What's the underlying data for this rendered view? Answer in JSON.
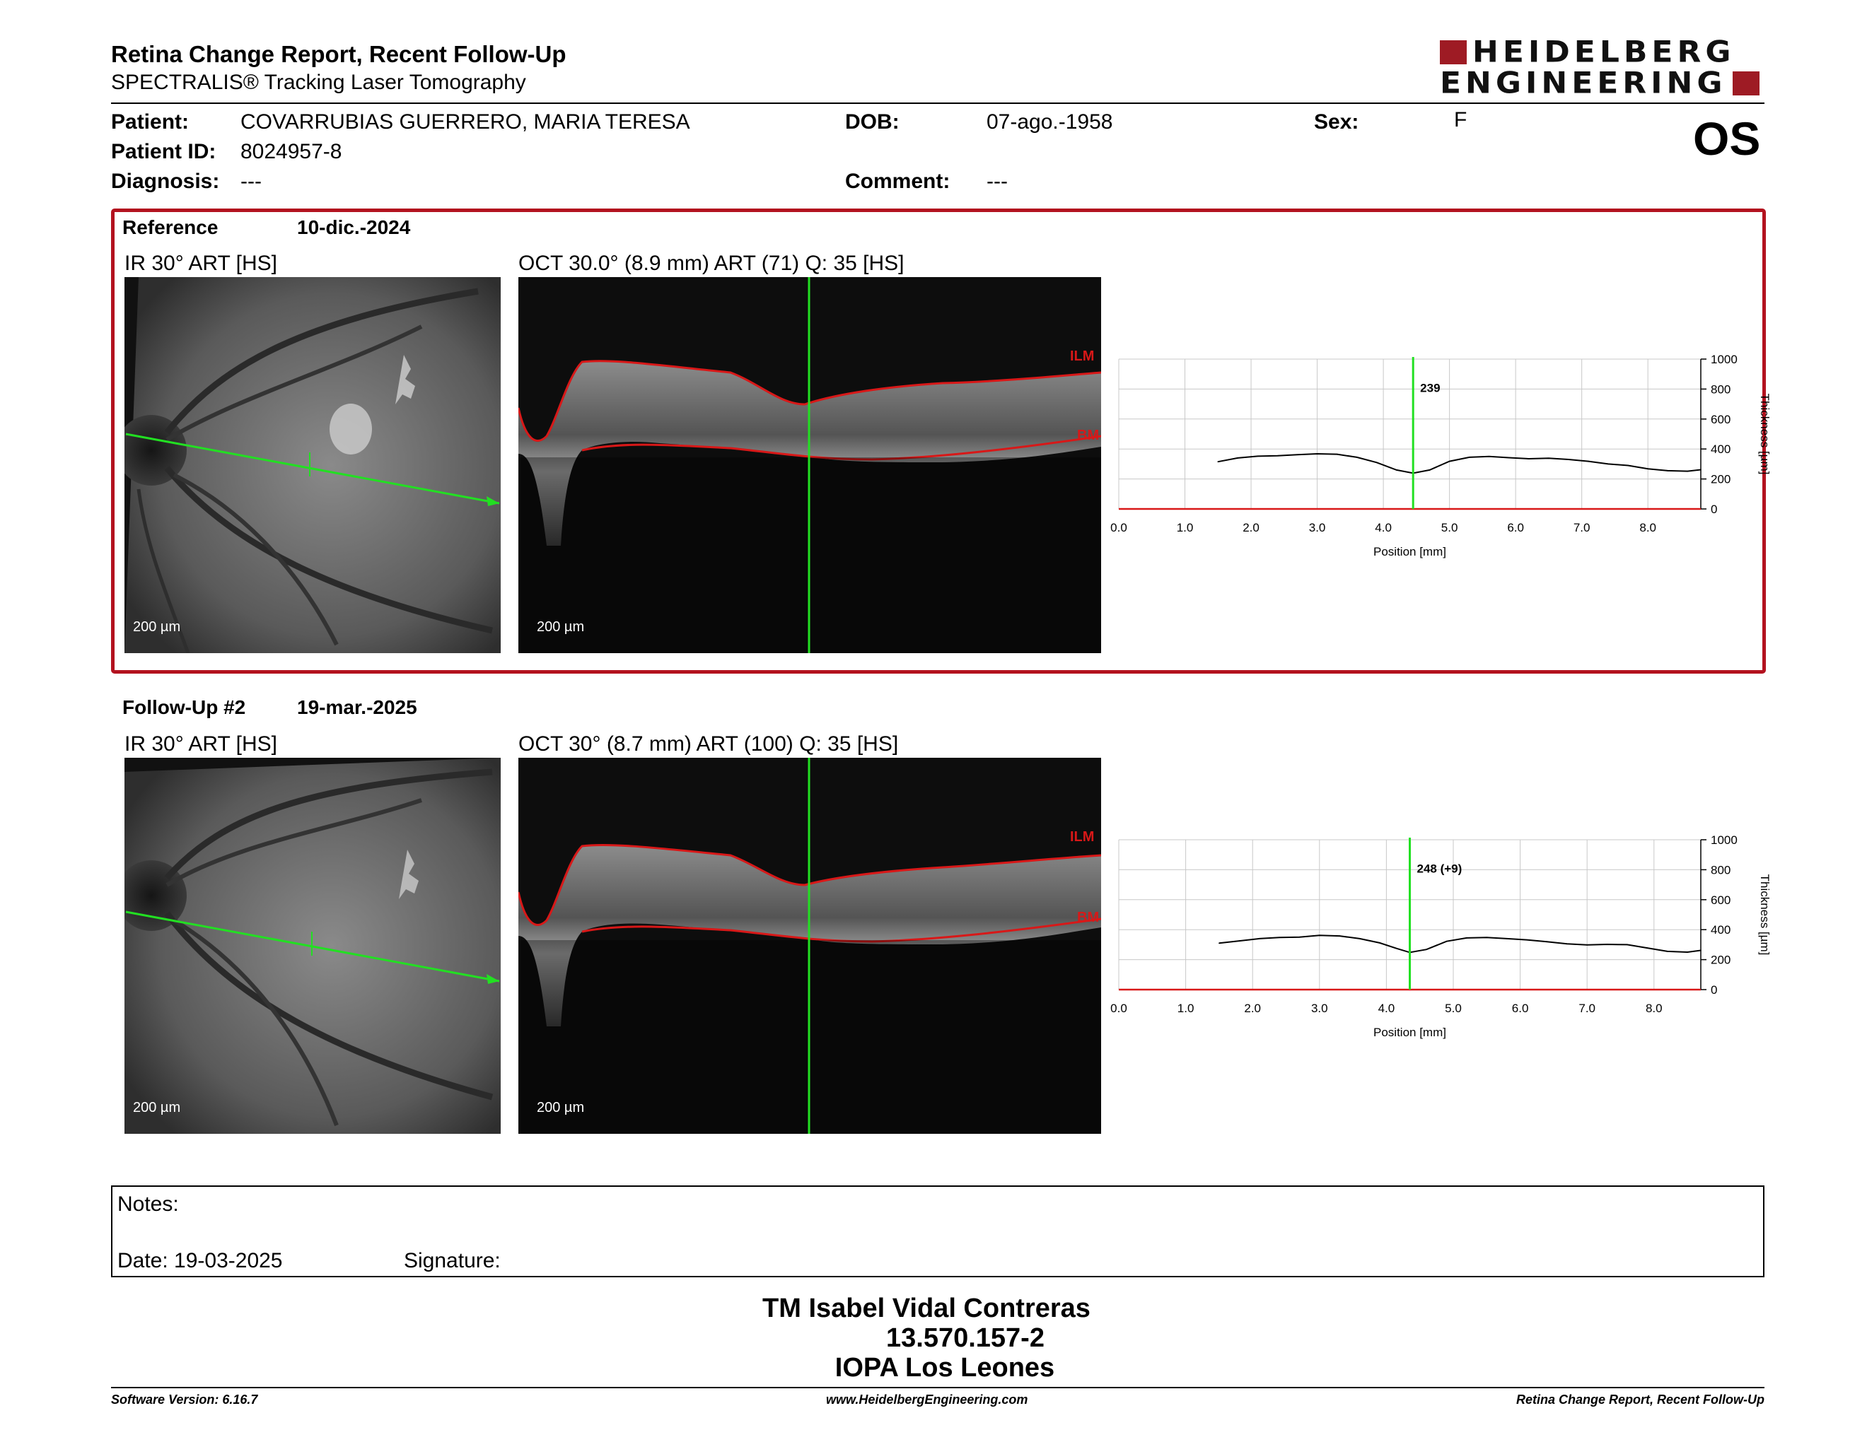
{
  "header": {
    "title": "Retina Change Report, Recent Follow-Up",
    "subtitle": "SPECTRALIS® Tracking Laser Tomography",
    "logo_line1": "HEIDELBERG",
    "logo_line2": "ENGINEERING",
    "eye": "OS"
  },
  "patient": {
    "patient_label": "Patient:",
    "patient_value": "COVARRUBIAS GUERRERO, MARIA TERESA",
    "id_label": "Patient ID:",
    "id_value": "8024957-8",
    "diag_label": "Diagnosis:",
    "diag_value": "---",
    "dob_label": "DOB:",
    "dob_value": "07-ago.-1958",
    "comment_label": "Comment:",
    "comment_value": "---",
    "sex_label": "Sex:",
    "sex_value": "F"
  },
  "exams": [
    {
      "label": "Reference",
      "date": "10-dic.-2024",
      "ir_caption": "IR 30° ART [HS]",
      "oct_caption": "OCT 30.0° (8.9 mm) ART (71) Q: 35 [HS]",
      "scale_ir": "200 µm",
      "scale_oct": "200 µm",
      "ilm": "ILM",
      "bm": "BM"
    },
    {
      "label": "Follow-Up #2",
      "date": "19-mar.-2025",
      "ir_caption": "IR 30° ART [HS]",
      "oct_caption": "OCT 30° (8.7 mm) ART (100) Q: 35 [HS]",
      "scale_ir": "200 µm",
      "scale_oct": "200 µm",
      "ilm": "ILM",
      "bm": "BM"
    }
  ],
  "chart_data": [
    {
      "type": "line",
      "xlabel": "Position [mm]",
      "ylabel": "Thickness [µm]",
      "xlim": [
        0,
        8.8
      ],
      "ylim": [
        0,
        1000
      ],
      "x_ticks": [
        "0.0",
        "1.0",
        "2.0",
        "3.0",
        "4.0",
        "5.0",
        "6.0",
        "7.0",
        "8.0"
      ],
      "y_ticks": [
        "0",
        "200",
        "400",
        "600",
        "800",
        "1000"
      ],
      "marker_x": 4.45,
      "marker_label": "239",
      "x": [
        1.5,
        1.8,
        2.1,
        2.4,
        2.7,
        3.0,
        3.3,
        3.6,
        3.9,
        4.2,
        4.45,
        4.7,
        5.0,
        5.3,
        5.6,
        5.9,
        6.2,
        6.5,
        6.8,
        7.1,
        7.4,
        7.7,
        8.0,
        8.3,
        8.6,
        8.8
      ],
      "y": [
        315,
        340,
        352,
        355,
        362,
        368,
        365,
        345,
        310,
        260,
        239,
        260,
        318,
        345,
        350,
        342,
        335,
        338,
        330,
        318,
        300,
        290,
        268,
        255,
        252,
        262
      ]
    },
    {
      "type": "line",
      "xlabel": "Position [mm]",
      "ylabel": "Thickness [µm]",
      "xlim": [
        0,
        8.7
      ],
      "ylim": [
        0,
        1000
      ],
      "x_ticks": [
        "0.0",
        "1.0",
        "2.0",
        "3.0",
        "4.0",
        "5.0",
        "6.0",
        "7.0",
        "8.0"
      ],
      "y_ticks": [
        "0",
        "200",
        "400",
        "600",
        "800",
        "1000"
      ],
      "marker_x": 4.35,
      "marker_label": "248 (+9)",
      "x": [
        1.5,
        1.8,
        2.1,
        2.4,
        2.7,
        3.0,
        3.3,
        3.6,
        3.9,
        4.15,
        4.35,
        4.6,
        4.9,
        5.2,
        5.5,
        5.8,
        6.1,
        6.4,
        6.7,
        7.0,
        7.3,
        7.6,
        7.9,
        8.2,
        8.5,
        8.7
      ],
      "y": [
        310,
        325,
        340,
        348,
        350,
        362,
        358,
        340,
        312,
        275,
        248,
        268,
        322,
        345,
        348,
        340,
        332,
        320,
        305,
        298,
        302,
        300,
        278,
        255,
        250,
        262
      ]
    }
  ],
  "notes": {
    "notes_label": "Notes:",
    "date_label": "Date: 19-03-2025",
    "signature_label": "Signature:"
  },
  "signatory": {
    "name": "TM Isabel Vidal Contreras",
    "id": "13.570.157-2",
    "org": "IOPA Los Leones"
  },
  "footer": {
    "version": "Software Version: 6.16.7",
    "url": "www.HeidelbergEngineering.com",
    "report": "Retina Change Report, Recent Follow-Up"
  },
  "colors": {
    "brand_red": "#9e1b24",
    "box_red": "#b3121f",
    "scan_green": "#22e022",
    "seg_red": "#d81818"
  }
}
